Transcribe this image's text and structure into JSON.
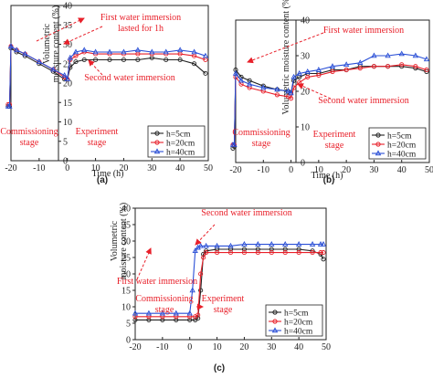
{
  "chart_data": [
    {
      "panel": "(a)",
      "type": "line",
      "xlabel": "Time (h)",
      "ylabel_line1": "Volumetric",
      "ylabel_line2": "moisture content (%)",
      "xlim": [
        -20,
        50
      ],
      "ylim": [
        0,
        40
      ],
      "xticks": [
        -20,
        -10,
        0,
        10,
        20,
        30,
        40,
        50
      ],
      "yticks": [
        0,
        5,
        10,
        15,
        20,
        25,
        30,
        35,
        40
      ],
      "series": [
        {
          "name": "h=5cm",
          "color": "#222222",
          "marker": "circle",
          "x": [
            -21,
            -20.5,
            -20,
            -18,
            -15,
            -10,
            -5,
            -1,
            0,
            1,
            3,
            6,
            10,
            15,
            20,
            25,
            30,
            35,
            40,
            45,
            49
          ],
          "y": [
            14,
            14,
            29,
            28,
            27,
            25,
            23,
            21,
            21,
            24,
            25.5,
            26,
            26,
            26,
            26,
            26,
            26.5,
            26,
            26,
            25,
            22.5
          ]
        },
        {
          "name": "h=20cm",
          "color": "#e8202a",
          "marker": "circle",
          "x": [
            -21,
            -20.5,
            -20,
            -18,
            -15,
            -10,
            -5,
            -1,
            0,
            1,
            3,
            6,
            10,
            15,
            20,
            25,
            30,
            35,
            40,
            45,
            49
          ],
          "y": [
            14.5,
            14.5,
            29.5,
            28.5,
            27.5,
            25.5,
            23.5,
            21.5,
            21,
            26,
            27,
            28,
            27.5,
            27.5,
            27.5,
            27.5,
            27.5,
            27.5,
            27.5,
            27,
            26
          ]
        },
        {
          "name": "h=40cm",
          "color": "#2a4fd6",
          "marker": "triangle",
          "x": [
            -21,
            -20.5,
            -20,
            -18,
            -15,
            -10,
            -5,
            -1,
            0,
            1,
            3,
            6,
            10,
            15,
            20,
            25,
            30,
            35,
            40,
            45,
            49
          ],
          "y": [
            14,
            14,
            29.5,
            28.5,
            27.5,
            25.5,
            23.5,
            22,
            21,
            26.5,
            28,
            28.5,
            28,
            28,
            28,
            28.5,
            28,
            28,
            28.5,
            28,
            27
          ]
        }
      ],
      "legend": "bottom-right",
      "annotations": [
        "First water immersion",
        "lasted for 1h",
        "Second water immersion",
        "Commissioning",
        "stage",
        "Experiment",
        "stage"
      ]
    },
    {
      "panel": "(b)",
      "type": "line",
      "xlabel": "Time (h)",
      "ylabel": "Volumetric moisture content (%)",
      "xlim": [
        -20,
        50
      ],
      "ylim": [
        0,
        40
      ],
      "xticks": [
        -20,
        -10,
        0,
        10,
        20,
        30,
        40,
        50
      ],
      "yticks": [
        0,
        10,
        20,
        30,
        40
      ],
      "series": [
        {
          "name": "h=5cm",
          "color": "#222222",
          "marker": "circle",
          "x": [
            -21,
            -20.5,
            -20,
            -18,
            -15,
            -10,
            -5,
            -1,
            0,
            1,
            3,
            6,
            10,
            15,
            20,
            25,
            30,
            35,
            40,
            45,
            49
          ],
          "y": [
            4,
            4.5,
            26,
            24,
            23,
            21.5,
            20.5,
            20,
            19.5,
            23,
            24,
            25,
            25,
            26,
            26,
            27,
            27,
            27,
            27,
            26.5,
            25.5
          ]
        },
        {
          "name": "h=20cm",
          "color": "#e8202a",
          "marker": "circle",
          "x": [
            -21,
            -20.5,
            -20,
            -18,
            -15,
            -10,
            -5,
            -1,
            0,
            1,
            3,
            6,
            10,
            15,
            20,
            25,
            30,
            35,
            40,
            45,
            49
          ],
          "y": [
            5,
            5,
            24,
            22,
            21,
            20,
            19,
            18.5,
            18,
            21,
            22.5,
            24,
            24.5,
            25.5,
            26,
            26.5,
            27,
            27,
            27.5,
            27,
            26
          ]
        },
        {
          "name": "h=40cm",
          "color": "#2a4fd6",
          "marker": "triangle",
          "x": [
            -21,
            -20.5,
            -20,
            -18,
            -15,
            -10,
            -5,
            -1,
            0,
            1,
            3,
            6,
            10,
            15,
            20,
            25,
            30,
            35,
            40,
            45,
            49
          ],
          "y": [
            5,
            5,
            25,
            23,
            22,
            21,
            20.5,
            20,
            19.5,
            24,
            25,
            25.5,
            26,
            27,
            27.5,
            28,
            30,
            30,
            30.5,
            30,
            29
          ]
        }
      ],
      "legend": "bottom-right",
      "annotations": [
        "First water immersion",
        "Second water immersion",
        "Commissioning",
        "stage",
        "Experiment",
        "stage"
      ]
    },
    {
      "panel": "(c)",
      "type": "line",
      "xlabel": "",
      "ylabel_line1": "Volumetric",
      "ylabel_line2": "moisture content (%)",
      "xlim": [
        -20,
        50
      ],
      "ylim": [
        0,
        40
      ],
      "xticks": [
        -20,
        -10,
        0,
        10,
        20,
        30,
        40,
        50
      ],
      "yticks": [
        0,
        5,
        10,
        15,
        20,
        25,
        30,
        35,
        40
      ],
      "series": [
        {
          "name": "h=5cm",
          "color": "#222222",
          "marker": "circle",
          "x": [
            -20,
            -15,
            -10,
            -5,
            0,
            2,
            3,
            4,
            5,
            6,
            10,
            15,
            20,
            25,
            30,
            35,
            40,
            45,
            48,
            49
          ],
          "y": [
            6,
            6,
            6,
            6,
            6,
            6,
            6.5,
            15,
            26,
            27,
            27.5,
            27.5,
            27.5,
            27.5,
            27.5,
            27.5,
            27.5,
            27,
            26,
            24.5
          ]
        },
        {
          "name": "h=20cm",
          "color": "#e8202a",
          "marker": "circle",
          "x": [
            -20,
            -15,
            -10,
            -5,
            0,
            2,
            3,
            4,
            5,
            6,
            10,
            15,
            20,
            25,
            30,
            35,
            40,
            45,
            48,
            49
          ],
          "y": [
            7,
            7,
            7,
            7,
            7,
            7,
            7.5,
            20,
            25,
            26.5,
            26.5,
            26.5,
            26.5,
            26.5,
            26.5,
            26.5,
            26.5,
            26.5,
            26.5,
            26.5
          ]
        },
        {
          "name": "h=40cm",
          "color": "#2a4fd6",
          "marker": "triangle",
          "x": [
            -20,
            -15,
            -10,
            -5,
            0,
            1,
            2,
            3,
            4,
            6,
            10,
            15,
            20,
            25,
            30,
            35,
            40,
            45,
            48,
            49
          ],
          "y": [
            8,
            8,
            8,
            8,
            8,
            15,
            27,
            28,
            28.5,
            28.5,
            28.5,
            28.5,
            29,
            29,
            29,
            29,
            29,
            29,
            29,
            29
          ]
        }
      ],
      "legend": "bottom-right",
      "annotations": [
        "Second water immersion",
        "First water immersion",
        "Commissioning",
        "stage",
        "Experiment",
        "stage"
      ]
    }
  ]
}
